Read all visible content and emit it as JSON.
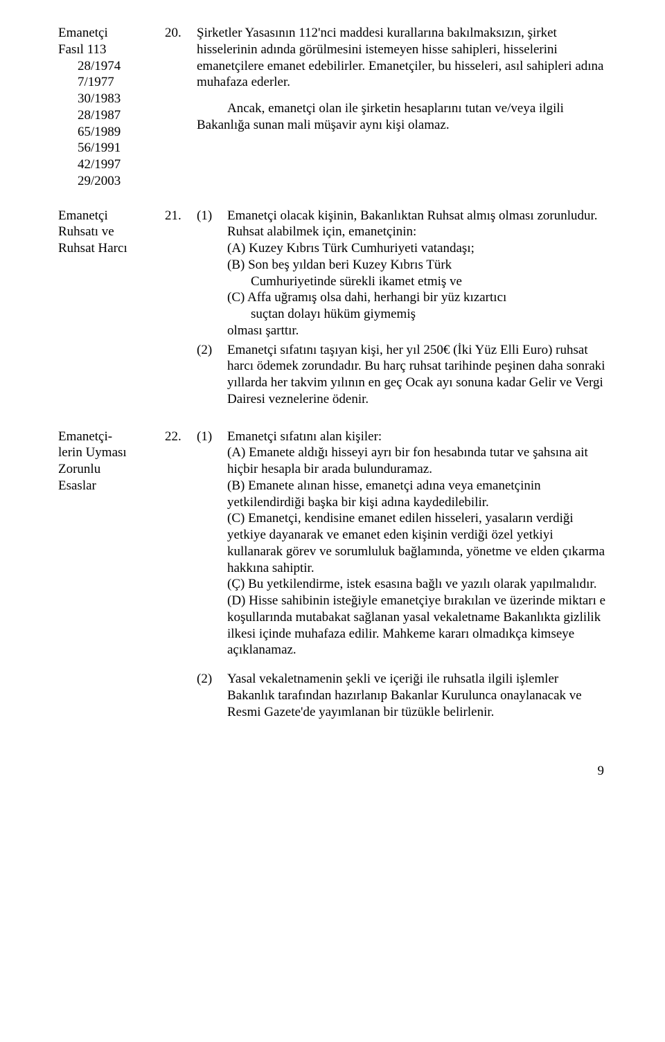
{
  "art20": {
    "margin_label": "Emanetçi\nFasıl 113",
    "amendments": [
      "28/1974",
      "7/1977",
      "30/1983",
      "28/1987",
      "65/1989",
      "56/1991",
      "42/1997",
      "29/2003"
    ],
    "number": "20.",
    "para1": "Şirketler Yasasının 112'nci maddesi kurallarına bakılmaksızın, şirket hisselerinin adında görülmesini istemeyen hisse sahipleri, hisselerini emanetçilere emanet edebilirler. Emanetçiler, bu hisseleri, asıl sahipleri adına muhafaza ederler.",
    "para2": "Ancak, emanetçi olan ile şirketin hesaplarını tutan ve/veya ilgili Bakanlığa sunan mali  müşavir aynı kişi olamaz."
  },
  "art21": {
    "margin_label": "Emanetçi\nRuhsatı ve\nRuhsat Harcı",
    "number": "21.",
    "sub1_num": "(1)",
    "sub1_lead": "Emanetçi olacak kişinin, Bakanlıktan Ruhsat almış olması zorunludur. Ruhsat alabilmek için, emanetçinin:",
    "sub1_a": "(A) Kuzey Kıbrıs Türk Cumhuriyeti vatandaşı;",
    "sub1_b": "(B) Son beş yıldan beri Kuzey Kıbrıs Türk",
    "sub1_b_cont": "Cumhuriyetinde sürekli ikamet etmiş ve",
    "sub1_c": "(C) Affa uğramış olsa dahi, herhangi bir yüz kızartıcı",
    "sub1_c_cont": "suçtan dolayı hüküm giymemiş",
    "sub1_tail": "olması şarttır.",
    "sub2_num": "(2)",
    "sub2": "Emanetçi sıfatını taşıyan kişi, her yıl 250€ (İki Yüz Elli Euro) ruhsat harcı ödemek zorundadır. Bu harç ruhsat tarihinde peşinen daha sonraki yıllarda her takvim yılının en geç Ocak ayı sonuna kadar Gelir ve Vergi Dairesi veznelerine ödenir."
  },
  "art22": {
    "margin_label": "Emanetçi-\nlerin Uyması\nZorunlu\nEsaslar",
    "number": "22.",
    "sub1_num": "(1)",
    "sub1_lead": "Emanetçi sıfatını alan kişiler:",
    "sub1_a": "(A) Emanete aldığı hisseyi ayrı bir fon hesabında tutar ve şahsına ait hiçbir hesapla bir arada bulunduramaz.",
    "sub1_b": "(B) Emanete alınan hisse, emanetçi adına veya emanetçinin yetkilendirdiği başka bir kişi adına kaydedilebilir.",
    "sub1_c": "(C) Emanetçi, kendisine emanet edilen hisseleri, yasaların verdiği yetkiye dayanarak ve emanet eden kişinin verdiği özel yetkiyi kullanarak görev ve sorumluluk bağlamında, yönetme ve elden çıkarma hakkına sahiptir.",
    "sub1_d": "(Ç) Bu yetkilendirme, istek esasına bağlı ve yazılı olarak yapılmalıdır.",
    "sub1_e": "(D) Hisse sahibinin isteğiyle emanetçiye bırakılan ve üzerinde miktarı e koşullarında mutabakat sağlanan yasal vekaletname Bakanlıkta gizlilik ilkesi içinde muhafaza edilir.  Mahkeme kararı olmadıkça kimseye açıklanamaz.",
    "sub2_num": "(2)",
    "sub2": "Yasal vekaletnamenin şekli ve içeriği ile ruhsatla ilgili işlemler Bakanlık tarafından hazırlanıp Bakanlar Kurulunca onaylanacak ve Resmi Gazete'de yayımlanan bir tüzükle belirlenir."
  },
  "page_number": "9"
}
